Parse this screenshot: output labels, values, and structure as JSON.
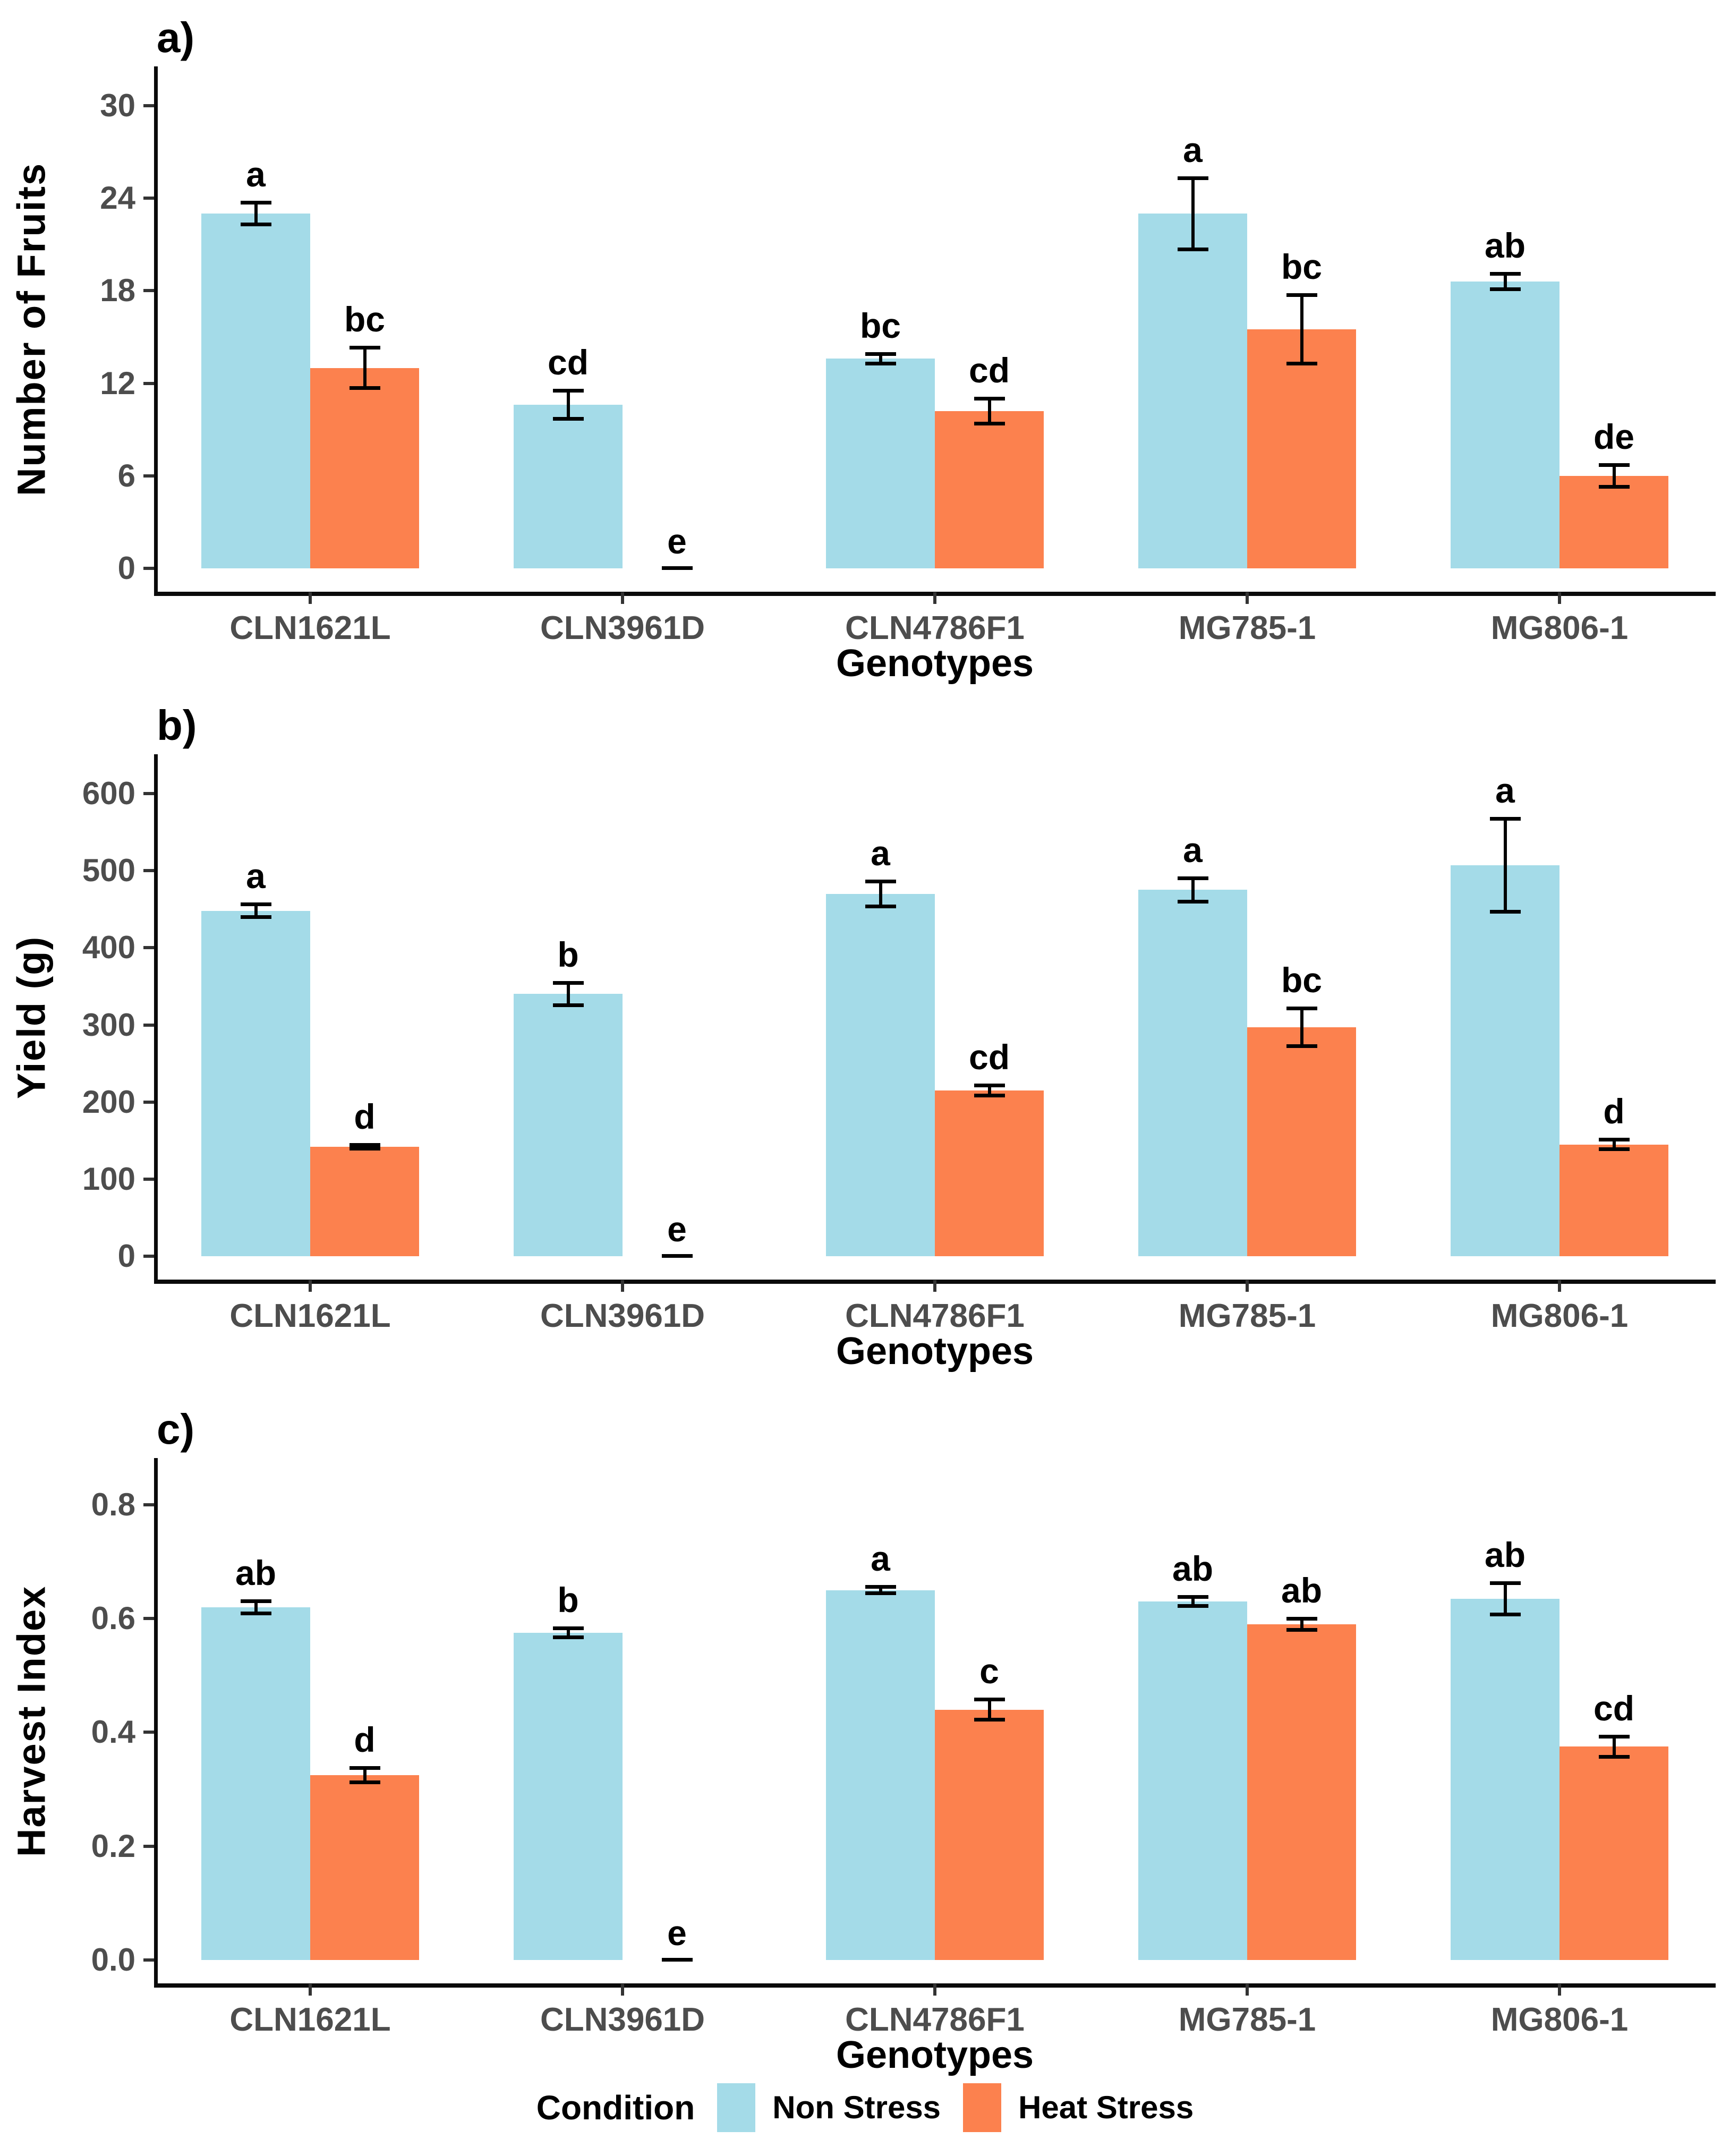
{
  "figure": {
    "colors": {
      "non_stress": "#A4DBE8",
      "heat_stress": "#FC814E",
      "axis_line": "#0a0a0a",
      "axis_text": "#4d4d4d",
      "error_bar": "#000000"
    },
    "legend": {
      "title": "Condition",
      "items": [
        {
          "label": "Non Stress",
          "color": "#A4DBE8"
        },
        {
          "label": "Heat Stress",
          "color": "#FC814E"
        }
      ],
      "position": "bottom"
    }
  },
  "chart_data": [
    {
      "type": "bar",
      "panel_letter": "a)",
      "xlabel": "Genotypes",
      "ylabel": "Number of Fruits",
      "ylim": [
        0,
        31
      ],
      "yticks": [
        0,
        6,
        12,
        18,
        24,
        30
      ],
      "ytick_labels": [
        "0",
        "6",
        "12",
        "18",
        "24",
        "30"
      ],
      "categories": [
        "CLN1621L",
        "CLN3961D",
        "CLN4786F1",
        "MG785-1",
        "MG806-1"
      ],
      "grid": false,
      "legend_position": "none",
      "series": [
        {
          "name": "Non Stress",
          "values": [
            23.0,
            10.6,
            13.6,
            23.0,
            18.6
          ],
          "errors": [
            0.8,
            1.0,
            0.4,
            2.4,
            0.6
          ],
          "letters": [
            "a",
            "cd",
            "bc",
            "a",
            "ab"
          ]
        },
        {
          "name": "Heat Stress",
          "values": [
            13.0,
            0,
            10.2,
            15.5,
            6.0
          ],
          "errors": [
            1.4,
            0,
            0.9,
            2.3,
            0.8
          ],
          "letters": [
            "bc",
            "e",
            "cd",
            "bc",
            "de"
          ]
        }
      ]
    },
    {
      "type": "bar",
      "panel_letter": "b)",
      "xlabel": "Genotypes",
      "ylabel": "Yield (g)",
      "ylim": [
        0,
        620
      ],
      "yticks": [
        0,
        100,
        200,
        300,
        400,
        500,
        600
      ],
      "ytick_labels": [
        "0",
        "100",
        "200",
        "300",
        "400",
        "500",
        "600"
      ],
      "categories": [
        "CLN1621L",
        "CLN3961D",
        "CLN4786F1",
        "MG785-1",
        "MG806-1"
      ],
      "grid": false,
      "legend_position": "none",
      "series": [
        {
          "name": "Non Stress",
          "values": [
            448,
            340,
            470,
            475,
            507
          ],
          "errors": [
            10,
            16,
            18,
            17,
            62
          ],
          "letters": [
            "a",
            "b",
            "a",
            "a",
            "a"
          ]
        },
        {
          "name": "Heat Stress",
          "values": [
            142,
            0,
            215,
            297,
            145
          ],
          "errors": [
            4,
            0,
            8,
            26,
            8
          ],
          "letters": [
            "d",
            "e",
            "cd",
            "bc",
            "d"
          ]
        }
      ]
    },
    {
      "type": "bar",
      "panel_letter": "c)",
      "xlabel": "Genotypes",
      "ylabel": "Harvest Index",
      "ylim": [
        0,
        0.84
      ],
      "yticks": [
        0,
        0.2,
        0.4,
        0.6,
        0.8
      ],
      "ytick_labels": [
        "0.0",
        "0.2",
        "0.4",
        "0.6",
        "0.8"
      ],
      "categories": [
        "CLN1621L",
        "CLN3961D",
        "CLN4786F1",
        "MG785-1",
        "MG806-1"
      ],
      "grid": false,
      "legend_position": "none",
      "series": [
        {
          "name": "Non Stress",
          "values": [
            0.62,
            0.575,
            0.65,
            0.63,
            0.635
          ],
          "errors": [
            0.013,
            0.01,
            0.008,
            0.01,
            0.03
          ],
          "letters": [
            "ab",
            "b",
            "a",
            "ab",
            "ab"
          ]
        },
        {
          "name": "Heat Stress",
          "values": [
            0.325,
            0,
            0.44,
            0.59,
            0.375
          ],
          "errors": [
            0.015,
            0,
            0.02,
            0.012,
            0.02
          ],
          "letters": [
            "d",
            "e",
            "c",
            "ab",
            "cd"
          ]
        }
      ]
    }
  ]
}
